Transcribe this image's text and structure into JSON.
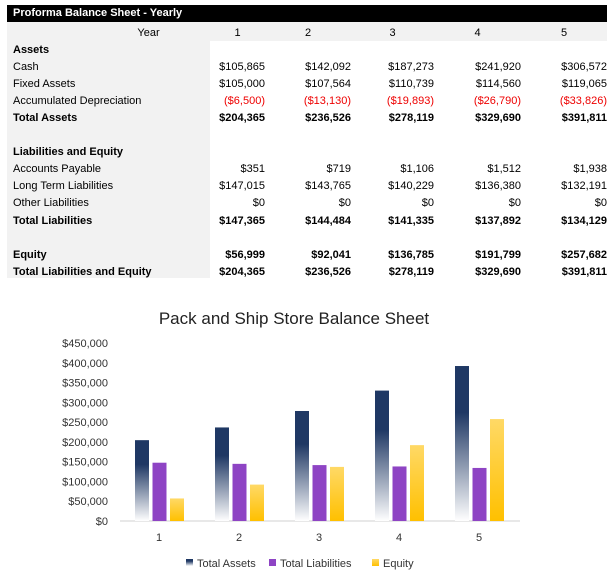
{
  "sheet": {
    "title": "Proforma Balance Sheet - Yearly",
    "year_label": "Year",
    "years": [
      "1",
      "2",
      "3",
      "4",
      "5"
    ],
    "rows": [
      {
        "label": "Assets",
        "values": [
          "",
          "",
          "",
          "",
          ""
        ],
        "bold": true
      },
      {
        "label": "Cash",
        "values": [
          "$105,865",
          "$142,092",
          "$187,273",
          "$241,920",
          "$306,572"
        ]
      },
      {
        "label": "Fixed Assets",
        "values": [
          "$105,000",
          "$107,564",
          "$110,739",
          "$114,560",
          "$119,065"
        ]
      },
      {
        "label": "Accumulated Depreciation",
        "values": [
          "($6,500)",
          "($13,130)",
          "($19,893)",
          "($26,790)",
          "($33,826)"
        ],
        "red": true
      },
      {
        "label": "Total Assets",
        "values": [
          "$204,365",
          "$236,526",
          "$278,119",
          "$329,690",
          "$391,811"
        ],
        "bold": true
      },
      {
        "label": "",
        "values": [
          "",
          "",
          "",
          "",
          ""
        ]
      },
      {
        "label": "Liabilities and Equity",
        "values": [
          "",
          "",
          "",
          "",
          ""
        ],
        "bold": true
      },
      {
        "label": "Accounts Payable",
        "values": [
          "$351",
          "$719",
          "$1,106",
          "$1,512",
          "$1,938"
        ]
      },
      {
        "label": "Long Term Liabilities",
        "values": [
          "$147,015",
          "$143,765",
          "$140,229",
          "$136,380",
          "$132,191"
        ]
      },
      {
        "label": "Other Liabilities",
        "values": [
          "$0",
          "$0",
          "$0",
          "$0",
          "$0"
        ]
      },
      {
        "label": "Total Liabilities",
        "values": [
          "$147,365",
          "$144,484",
          "$141,335",
          "$137,892",
          "$134,129"
        ],
        "bold": true
      },
      {
        "label": "",
        "values": [
          "",
          "",
          "",
          "",
          ""
        ]
      },
      {
        "label": "Equity",
        "values": [
          "$56,999",
          "$92,041",
          "$136,785",
          "$191,799",
          "$257,682"
        ],
        "bold": true
      },
      {
        "label": "Total Liabilities and Equity",
        "values": [
          "$204,365",
          "$236,526",
          "$278,119",
          "$329,690",
          "$391,811"
        ],
        "bold": true
      }
    ]
  },
  "chart_data": {
    "type": "bar",
    "title": "Pack and Ship Store Balance Sheet",
    "categories": [
      "1",
      "2",
      "3",
      "4",
      "5"
    ],
    "series": [
      {
        "name": "Total Assets",
        "values": [
          204365,
          236526,
          278119,
          329690,
          391811
        ],
        "color": "#1f3864"
      },
      {
        "name": "Total Liabilities",
        "values": [
          147365,
          144484,
          141335,
          137892,
          134129
        ],
        "color": "#8e44c4"
      },
      {
        "name": "Equity",
        "values": [
          56999,
          92041,
          136785,
          191799,
          257682
        ],
        "color": "#ffc000"
      }
    ],
    "ylim": [
      0,
      450000
    ],
    "yticks": [
      "$0",
      "$50,000",
      "$100,000",
      "$150,000",
      "$200,000",
      "$250,000",
      "$300,000",
      "$350,000",
      "$400,000",
      "$450,000"
    ],
    "grid": false,
    "legend": "bottom"
  }
}
